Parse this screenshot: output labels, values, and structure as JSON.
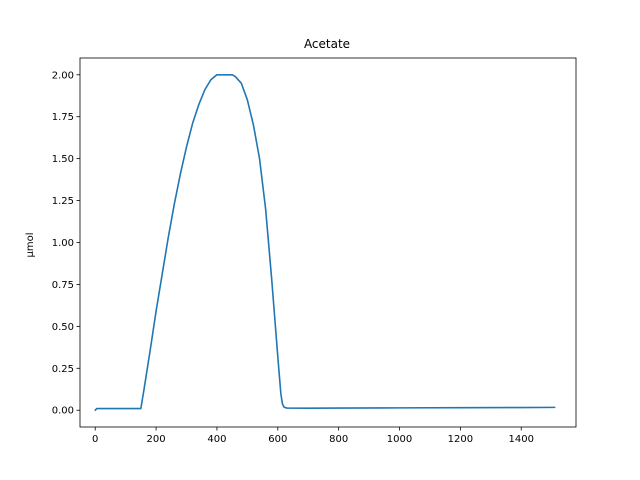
{
  "chart_data": {
    "type": "line",
    "title": "Acetate",
    "xlabel": "",
    "ylabel": "µmol",
    "xlim": [
      -50,
      1580
    ],
    "ylim": [
      -0.1,
      2.1
    ],
    "xticks": [
      0,
      200,
      400,
      600,
      800,
      1000,
      1200,
      1400
    ],
    "yticks": [
      0.0,
      0.25,
      0.5,
      0.75,
      1.0,
      1.25,
      1.5,
      1.75,
      2.0
    ],
    "ytick_labels": [
      "0.00",
      "0.25",
      "0.50",
      "0.75",
      "1.00",
      "1.25",
      "1.50",
      "1.75",
      "2.00"
    ],
    "grid": false,
    "legend": "none",
    "colors": {
      "line": "#1f77b4"
    },
    "series": [
      {
        "x": [
          0,
          5,
          150,
          160,
          180,
          200,
          220,
          240,
          260,
          280,
          300,
          320,
          340,
          360,
          380,
          400,
          420,
          440,
          450,
          460,
          480,
          500,
          520,
          540,
          560,
          580,
          590,
          600,
          610,
          615,
          620,
          625,
          630,
          700,
          800,
          1000,
          1200,
          1400,
          1510
        ],
        "values": [
          0.0,
          0.01,
          0.01,
          0.12,
          0.35,
          0.59,
          0.81,
          1.03,
          1.23,
          1.41,
          1.57,
          1.71,
          1.82,
          1.91,
          1.97,
          2.0,
          2.0,
          2.0,
          2.0,
          1.99,
          1.95,
          1.85,
          1.7,
          1.5,
          1.2,
          0.78,
          0.55,
          0.32,
          0.1,
          0.04,
          0.02,
          0.015,
          0.013,
          0.012,
          0.013,
          0.014,
          0.015,
          0.016,
          0.017
        ]
      }
    ]
  }
}
